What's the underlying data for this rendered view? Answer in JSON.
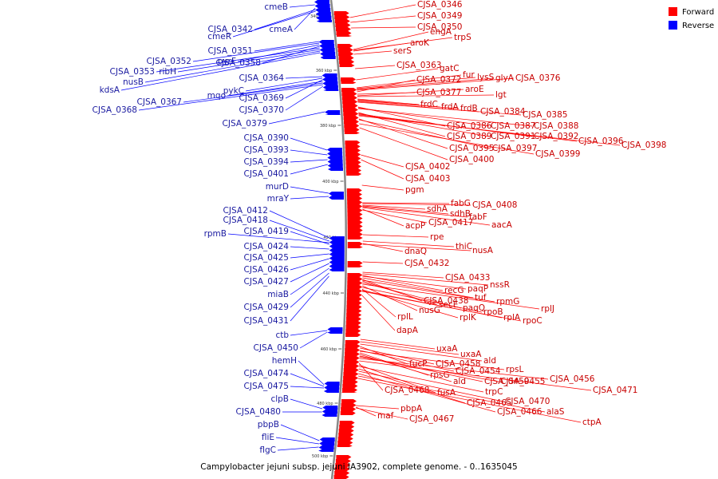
{
  "caption": "Campylobacter jejuni subsp. jejuni IA3902, complete genome. - 0..1635045",
  "legend": [
    {
      "label": "Forward",
      "color": "#ff0000"
    },
    {
      "label": "Reverse",
      "color": "#0000ff"
    }
  ],
  "colors": {
    "forward_line": "#ff0000",
    "forward_text": "#c80000",
    "reverse_line": "#0000ff",
    "reverse_text": "#1a1aa0",
    "backbone": "#888888"
  },
  "scale_ticks": [
    "340 kbp",
    "360 kbp",
    "380 kbp",
    "400 kbp",
    "420 kbp",
    "440 kbp",
    "460 kbp",
    "480 kbp",
    "500 kbp"
  ],
  "forward_genes": [
    "CJSA_0346",
    "CJSA_0349",
    "CJSA_0350",
    "engA",
    "trpS",
    "aroK",
    "serS",
    "CJSA_0363",
    "gatC",
    "fur",
    "lysS",
    "glyA",
    "CJSA_0376",
    "CJSA_0372",
    "CJSA_0377",
    "aroE",
    "lgt",
    "frdC",
    "frdA",
    "frdB",
    "CJSA_0384",
    "CJSA_0385",
    "CJSA_0386",
    "CJSA_0387",
    "CJSA_0388",
    "CJSA_0389",
    "CJSA_0391",
    "CJSA_0392",
    "CJSA_0396",
    "CJSA_0398",
    "CJSA_0395",
    "CJSA_0397",
    "CJSA_0399",
    "CJSA_0400",
    "CJSA_0402",
    "CJSA_0403",
    "pgm",
    "fabG",
    "CJSA_0408",
    "sdhA",
    "sdhB",
    "fabF",
    "aacA",
    "acpP",
    "CJSA_0417",
    "rpe",
    "thiC",
    "dnaQ",
    "nusA",
    "CJSA_0432",
    "CJSA_0433",
    "nssR",
    "recG",
    "paqP",
    "tuf",
    "CJSA_0438",
    "rpmG",
    "secE",
    "paqQ",
    "rplJ",
    "nusG",
    "rpoB",
    "rplL",
    "rplK",
    "rplA",
    "rpoC",
    "dapA",
    "uxaA",
    "uxaA",
    "ald",
    "fucP",
    "CJSA_0458",
    "CJSA_0454",
    "rpsL",
    "rpsG",
    "ald",
    "CJSA_0459",
    "CJSA_0455",
    "CJSA_0456",
    "CJSA_0471",
    "CJSA_0468",
    "fusA",
    "trpC",
    "CJSA_0465",
    "CJSA_0470",
    "CJSA_0466",
    "alaS",
    "pbpA",
    "maf",
    "CJSA_0467",
    "ctpA"
  ],
  "reverse_genes": [
    "cmeB",
    "cmeA",
    "CJSA_0342",
    "cmeR",
    "CJSA_0351",
    "CJSA_0352",
    "pyrF",
    "CJSA_0358",
    "CJSA_0353",
    "ribH",
    "nusB",
    "kdsA",
    "CJSA_0364",
    "pykC",
    "CJSA_0369",
    "mqo",
    "CJSA_0367",
    "CJSA_0368",
    "CJSA_0370",
    "CJSA_0379",
    "CJSA_0390",
    "CJSA_0393",
    "CJSA_0394",
    "CJSA_0401",
    "murD",
    "mraY",
    "CJSA_0412",
    "CJSA_0418",
    "rpmB",
    "CJSA_0419",
    "CJSA_0424",
    "CJSA_0425",
    "CJSA_0426",
    "CJSA_0427",
    "miaB",
    "CJSA_0429",
    "CJSA_0431",
    "ctb",
    "CJSA_0450",
    "hemH",
    "CJSA_0474",
    "CJSA_0475",
    "clpB",
    "CJSA_0480",
    "pbpB",
    "fliE",
    "flgC"
  ]
}
